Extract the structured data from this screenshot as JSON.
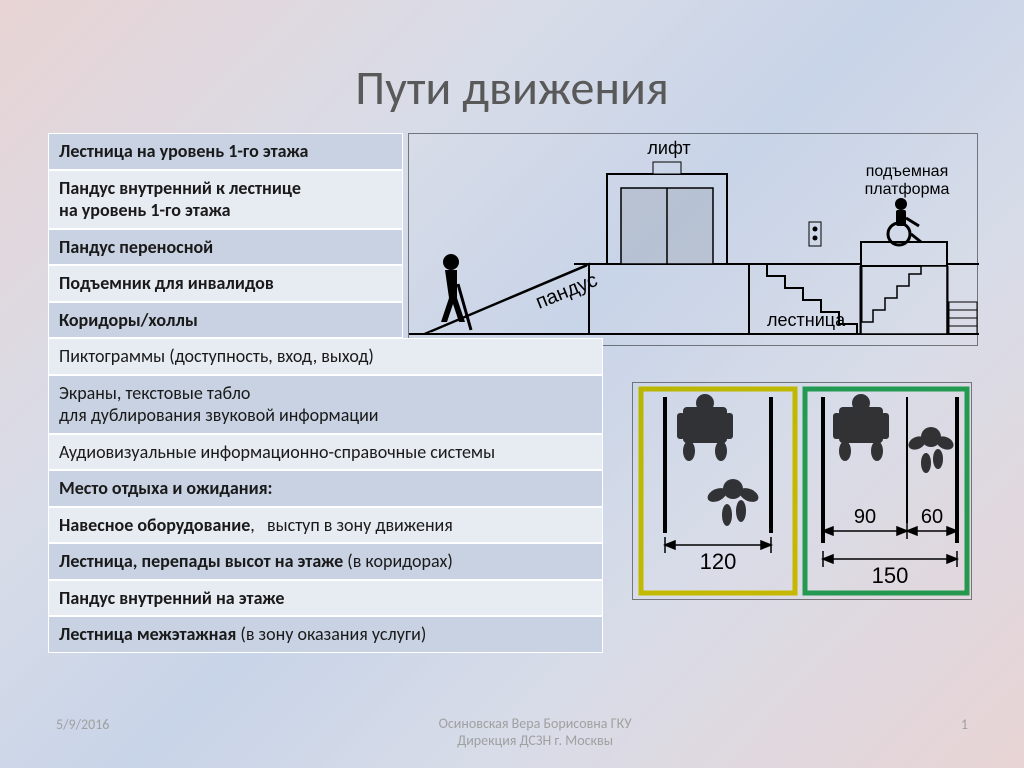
{
  "title": "Пути движения",
  "rows": [
    {
      "text": "Лестница на уровень 1-го этажа",
      "bold": true,
      "bg": "#c8d2e2",
      "w": "narrow"
    },
    {
      "text": "Пандус внутренний к лестнице\n на уровень 1-го этажа",
      "bold": true,
      "bg": "#e7ebf2",
      "w": "narrow"
    },
    {
      "text": "Пандус переносной",
      "bold": true,
      "bg": "#c8d2e2",
      "w": "narrow"
    },
    {
      "text": "Подъемник для инвалидов",
      "bold": true,
      "bg": "#e7ebf2",
      "w": "narrow"
    },
    {
      "text": "Коридоры/холлы",
      "bold": true,
      "bg": "#c8d2e2",
      "w": "narrow"
    },
    {
      "text": "Пиктограммы (доступность, вход, выход)",
      "bold": false,
      "bg": "#e7ebf2",
      "w": "wide"
    },
    {
      "text": "Экраны, текстовые табло\nдля дублирования звуковой информации",
      "bold": false,
      "bg": "#c8d2e2",
      "w": "wide"
    },
    {
      "text": "Аудиовизуальные информационно-справочные системы",
      "bold": false,
      "bg": "#e7ebf2",
      "w": "wide"
    },
    {
      "html": "<b>Место отдыха и ожидания:</b>",
      "bg": "#c8d2e2",
      "w": "wide"
    },
    {
      "html": "<b>Навесное оборудование</b>,&nbsp;&nbsp;&nbsp;выступ в зону движения",
      "bg": "#e7ebf2",
      "w": "wide"
    },
    {
      "html": "<b>Лестница, перепады высот  на этаже</b> (в коридорах)",
      "bg": "#c8d2e2",
      "w": "wide"
    },
    {
      "html": "<b>Пандус внутренний на этаже</b>",
      "bg": "#e7ebf2",
      "w": "wide"
    },
    {
      "html": "<b>Лестница межэтажная</b>  (в зону оказания услуги)",
      "bg": "#c8d2e2",
      "w": "wide"
    }
  ],
  "topDiagram": {
    "labels": {
      "lift": "лифт",
      "ramp": "пандус",
      "stairs": "лестница",
      "platform_l1": "подъемная",
      "platform_l2": "платформа"
    },
    "colors": {
      "stroke": "#000000",
      "fill_person": "#000000",
      "fill_light": "#ffffff"
    }
  },
  "bottomDiagram": {
    "left": {
      "border": "#e6d800",
      "width_label": "120"
    },
    "right": {
      "border": "#29b35a",
      "width_label_total": "150",
      "width_label_a": "90",
      "width_label_b": "60"
    },
    "colors": {
      "line": "#000000",
      "fill": "#3a3a3a"
    }
  },
  "footer": {
    "date": "5/9/2016",
    "author_l1": "Осиновская Вера Борисовна ГКУ",
    "author_l2": "Дирекция ДСЗН г. Москвы",
    "page": "1"
  }
}
